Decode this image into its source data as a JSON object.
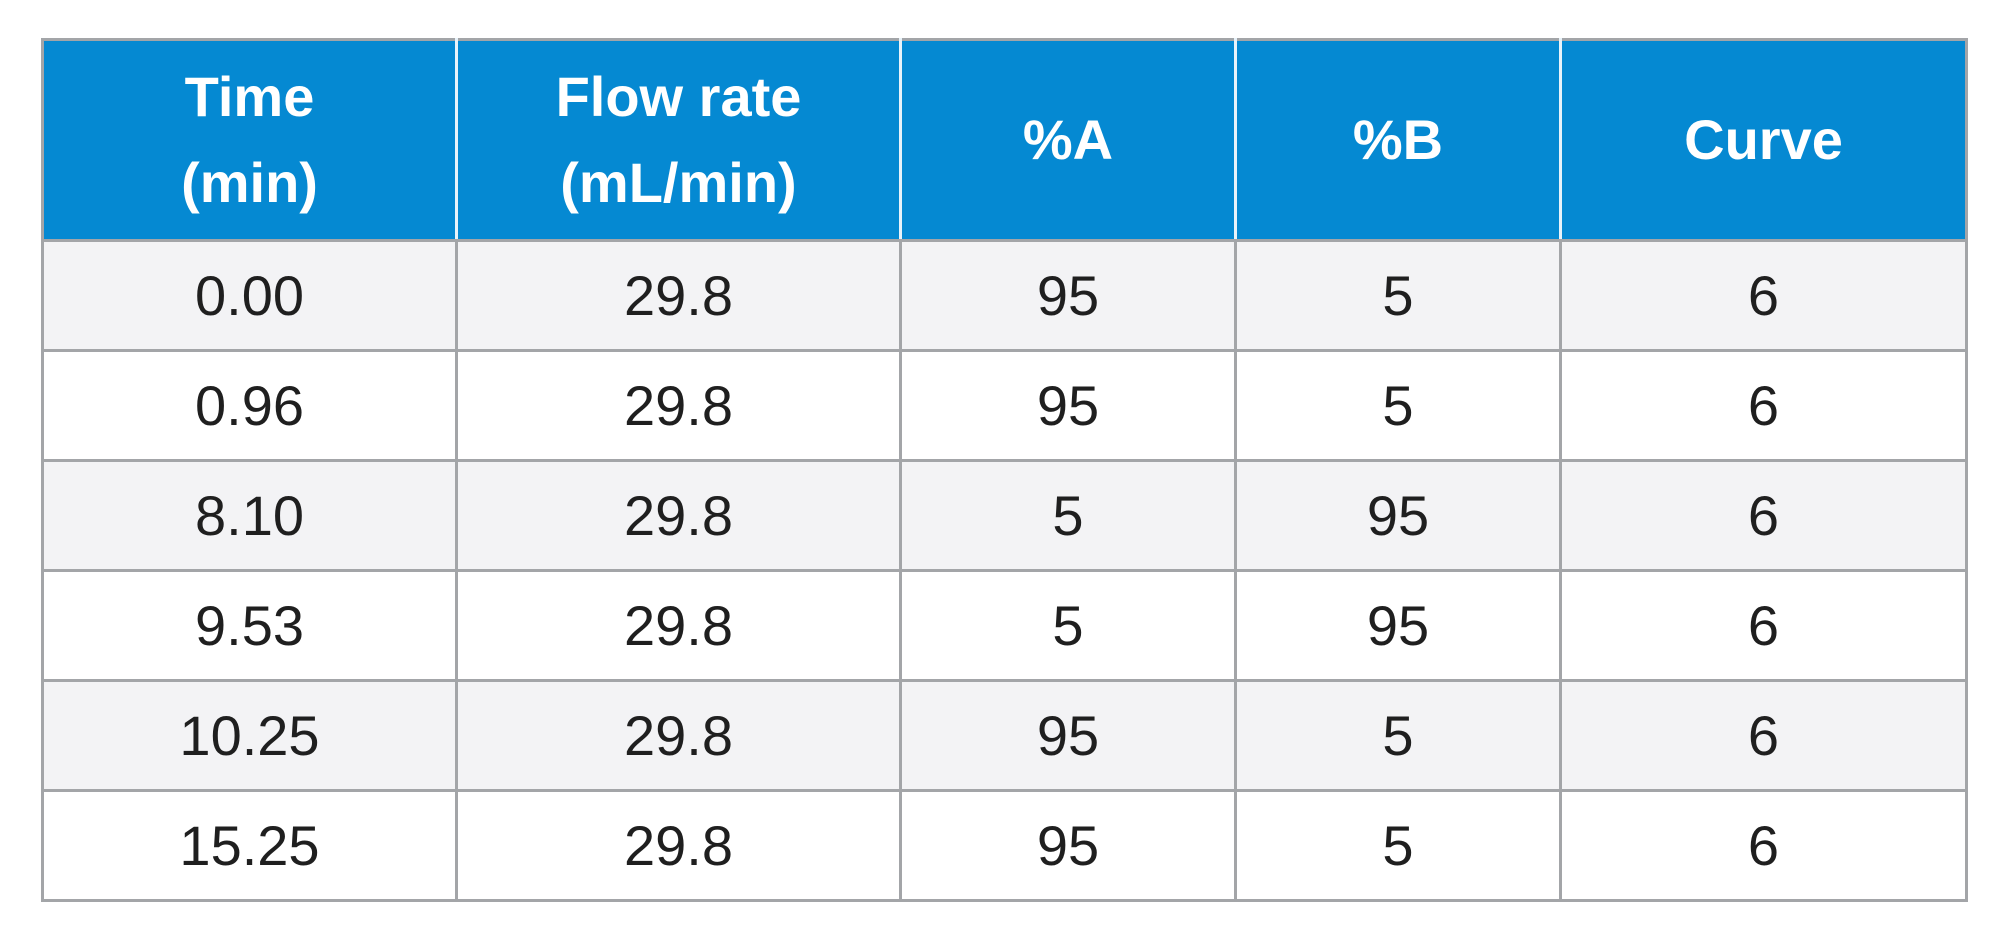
{
  "table": {
    "headers": [
      [
        "Time",
        "(min)"
      ],
      [
        "Flow rate",
        "(mL/min)"
      ],
      [
        "%A"
      ],
      [
        "%B"
      ],
      [
        "Curve"
      ]
    ],
    "rows": [
      [
        "0.00",
        "29.8",
        "95",
        "5",
        "6"
      ],
      [
        "0.96",
        "29.8",
        "95",
        "5",
        "6"
      ],
      [
        "8.10",
        "29.8",
        "5",
        "95",
        "6"
      ],
      [
        "9.53",
        "29.8",
        "5",
        "95",
        "6"
      ],
      [
        "10.25",
        "29.8",
        "95",
        "5",
        "6"
      ],
      [
        "15.25",
        "29.8",
        "95",
        "5",
        "6"
      ]
    ]
  },
  "colors": {
    "header_bg": "#0589d2",
    "header_text": "#ffffff",
    "row_shade": "#f3f3f5",
    "row_plain": "#ffffff",
    "border": "#a3a5a8",
    "cell_text": "#1f1f1f"
  }
}
